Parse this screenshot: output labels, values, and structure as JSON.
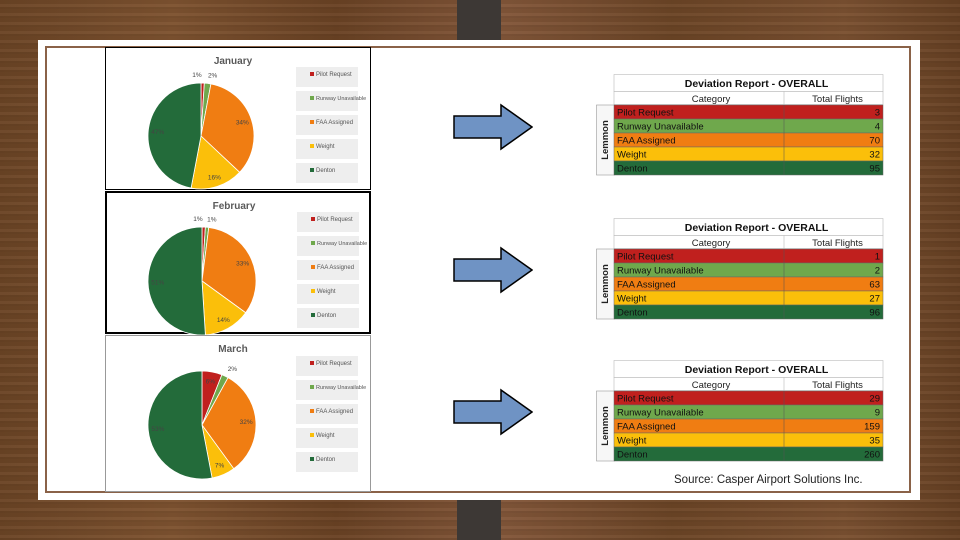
{
  "source_note": "Source: Casper Airport Solutions Inc.",
  "colors": {
    "pilot": "#c0201e",
    "runway": "#6fa84c",
    "faa": "#f07d12",
    "weight": "#fbbf0a",
    "denton": "#236b3a"
  },
  "legend_labels": [
    "Pilot Request",
    "Runway Unavailable",
    "FAA Assigned",
    "Weight",
    "Denton"
  ],
  "chart_data": [
    {
      "type": "pie",
      "title": "January",
      "slices": [
        {
          "name": "Pilot Request",
          "value": 1,
          "label": "1%"
        },
        {
          "name": "Runway Unavailable",
          "value": 2,
          "label": "2%"
        },
        {
          "name": "FAA Assigned",
          "value": 34,
          "label": "34%"
        },
        {
          "name": "Weight",
          "value": 16,
          "label": "16%"
        },
        {
          "name": "Denton",
          "value": 47,
          "label": "47%"
        }
      ],
      "legend": "right"
    },
    {
      "type": "pie",
      "title": "February",
      "slices": [
        {
          "name": "Pilot Request",
          "value": 1,
          "label": "1%"
        },
        {
          "name": "Runway Unavailable",
          "value": 1,
          "label": "1%"
        },
        {
          "name": "FAA Assigned",
          "value": 33,
          "label": "33%"
        },
        {
          "name": "Weight",
          "value": 14,
          "label": "14%"
        },
        {
          "name": "Denton",
          "value": 51,
          "label": "51%"
        }
      ],
      "legend": "right"
    },
    {
      "type": "pie",
      "title": "March",
      "slices": [
        {
          "name": "Pilot Request",
          "value": 6,
          "label": "6%"
        },
        {
          "name": "Runway Unavailable",
          "value": 2,
          "label": "2%"
        },
        {
          "name": "FAA Assigned",
          "value": 32,
          "label": "32%"
        },
        {
          "name": "Weight",
          "value": 7,
          "label": "7%"
        },
        {
          "name": "Denton",
          "value": 53,
          "label": "53%"
        }
      ],
      "legend": "right"
    },
    {
      "type": "table",
      "title": "Deviation Report - OVERALL",
      "side_label": "Lemmon",
      "columns": [
        "Category",
        "Total Flights"
      ],
      "rows": [
        [
          "Pilot Request",
          "3"
        ],
        [
          "Runway Unavailable",
          "4"
        ],
        [
          "FAA Assigned",
          "70"
        ],
        [
          "Weight",
          "32"
        ],
        [
          "Denton",
          "95"
        ]
      ]
    },
    {
      "type": "table",
      "title": "Deviation Report - OVERALL",
      "side_label": "Lemmon",
      "columns": [
        "Category",
        "Total Flights"
      ],
      "rows": [
        [
          "Pilot Request",
          "1"
        ],
        [
          "Runway Unavailable",
          "2"
        ],
        [
          "FAA Assigned",
          "63"
        ],
        [
          "Weight",
          "27"
        ],
        [
          "Denton",
          "96"
        ]
      ]
    },
    {
      "type": "table",
      "title": "Deviation Report - OVERALL",
      "side_label": "Lemmon",
      "columns": [
        "Category",
        "Total Flights"
      ],
      "rows": [
        [
          "Pilot Request",
          "29"
        ],
        [
          "Runway Unavailable",
          "9"
        ],
        [
          "FAA Assigned",
          "159"
        ],
        [
          "Weight",
          "35"
        ],
        [
          "Denton",
          "260"
        ]
      ]
    }
  ]
}
